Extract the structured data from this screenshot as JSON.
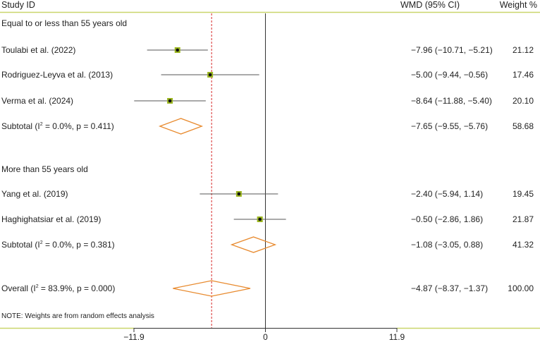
{
  "chart_data": {
    "type": "forest",
    "columns": {
      "study": "Study ID",
      "effect": "WMD (95% CI)",
      "weight": "Weight %"
    },
    "groups": [
      {
        "label": "Equal to or less than 55 years old",
        "studies": [
          {
            "name": "Toulabi et al. (2022)",
            "wmd": -7.96,
            "lo": -10.71,
            "hi": -5.21,
            "ci_text": "−7.96 (−10.71, −5.21)",
            "weight": "21.12"
          },
          {
            "name": "Rodriguez-Leyva et al. (2013)",
            "wmd": -5.0,
            "lo": -9.44,
            "hi": -0.56,
            "ci_text": "−5.00 (−9.44, −0.56)",
            "weight": "17.46"
          },
          {
            "name": "Verma et al. (2024)",
            "wmd": -8.64,
            "lo": -11.88,
            "hi": -5.4,
            "ci_text": "−8.64 (−11.88, −5.40)",
            "weight": "20.10"
          }
        ],
        "subtotal": {
          "label_pre": "Subtotal (I",
          "label_post": " = 0.0%, p = 0.411)",
          "wmd": -7.65,
          "lo": -9.55,
          "hi": -5.76,
          "ci_text": "−7.65 (−9.55, −5.76)",
          "weight": "58.68"
        }
      },
      {
        "label": "More than 55 years old",
        "studies": [
          {
            "name": "Yang et al. (2019)",
            "wmd": -2.4,
            "lo": -5.94,
            "hi": 1.14,
            "ci_text": "−2.40 (−5.94, 1.14)",
            "weight": "19.45"
          },
          {
            "name": "Haghighatsiar et al. (2019)",
            "wmd": -0.5,
            "lo": -2.86,
            "hi": 1.86,
            "ci_text": "−0.50 (−2.86, 1.86)",
            "weight": "21.87"
          }
        ],
        "subtotal": {
          "label_pre": "Subtotal (I",
          "label_post": " = 0.0%, p = 0.381)",
          "wmd": -1.08,
          "lo": -3.05,
          "hi": 0.88,
          "ci_text": "−1.08 (−3.05, 0.88)",
          "weight": "41.32"
        }
      }
    ],
    "overall": {
      "label_pre": "Overall (I",
      "label_post": " = 83.9%, p = 0.000)",
      "wmd": -4.87,
      "lo": -8.37,
      "hi": -1.37,
      "ci_text": "−4.87 (−8.37, −1.37)",
      "weight": "100.00"
    },
    "note": "NOTE: Weights are from random effects analysis",
    "xlim": [
      -11.9,
      11.9
    ],
    "ticks": [
      {
        "value": -11.9,
        "label": "−11.9"
      },
      {
        "value": 0,
        "label": "0"
      },
      {
        "value": 11.9,
        "label": "11.9"
      }
    ],
    "null_line": 0,
    "sup": "2",
    "colors": {
      "accent": "#c9d66b",
      "diamond": "#e88a2e",
      "marker": "#9ab51e",
      "ref_line": "#d62828"
    }
  }
}
